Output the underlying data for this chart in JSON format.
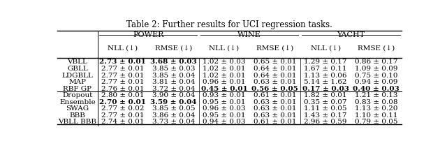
{
  "title": "Table 2: Further results for UCI regression tasks.",
  "col_groups": [
    "Power",
    "Wine",
    "Yacht"
  ],
  "col_headers": [
    "NLL (↓)",
    "RMSE (↓)",
    "NLL (↓)",
    "RMSE (↓)",
    "NLL (↓)",
    "RMSE (↓)"
  ],
  "row_labels": [
    "VBLL",
    "GBLL",
    "LDGBLL",
    "MAP",
    "RBF GP",
    "Dropout",
    "Ensemble",
    "SWAG",
    "BBB",
    "VBLL BBB"
  ],
  "data": [
    [
      "2.73 ± 0.01",
      "3.68 ± 0.03",
      "1.02 ± 0.03",
      "0.65 ± 0.01",
      "1.29 ± 0.17",
      "0.86 ± 0.17"
    ],
    [
      "2.77 ± 0.01",
      "3.85 ± 0.03",
      "1.02 ± 0.01",
      "0.64 ± 0.01",
      "1.67 ± 0.11",
      "1.09 ± 0.09"
    ],
    [
      "2.77 ± 0.01",
      "3.85 ± 0.04",
      "1.02 ± 0.01",
      "0.64 ± 0.01",
      "1.13 ± 0.06",
      "0.75 ± 0.10"
    ],
    [
      "2.77 ± 0.01",
      "3.81 ± 0.04",
      "0.96 ± 0.01",
      "0.63 ± 0.01",
      "5.14 ± 1.62",
      "0.94 ± 0.09"
    ],
    [
      "2.76 ± 0.01",
      "3.72 ± 0.04",
      "0.45 ± 0.01",
      "0.56 ± 0.05",
      "0.17 ± 0.03",
      "0.40 ± 0.03"
    ],
    [
      "2.80 ± 0.01",
      "3.90 ± 0.04",
      "0.93 ± 0.01",
      "0.61 ± 0.01",
      "1.82 ± 0.01",
      "1.21 ± 0.13"
    ],
    [
      "2.70 ± 0.01",
      "3.59 ± 0.04",
      "0.95 ± 0.01",
      "0.63 ± 0.01",
      "0.35 ± 0.07",
      "0.83 ± 0.08"
    ],
    [
      "2.77 ± 0.02",
      "3.85 ± 0.05",
      "0.96 ± 0.03",
      "0.63 ± 0.01",
      "1.11 ± 0.05",
      "1.13 ± 0.20"
    ],
    [
      "2.77 ± 0.01",
      "3.86 ± 0.04",
      "0.95 ± 0.01",
      "0.63 ± 0.01",
      "1.43 ± 0.17",
      "1.10 ± 0.11"
    ],
    [
      "2.74 ± 0.01",
      "3.73 ± 0.04",
      "0.94 ± 0.03",
      "0.61 ± 0.01",
      "2.96 ± 0.59",
      "0.79 ± 0.05"
    ]
  ],
  "bold": [
    [
      true,
      true,
      false,
      false,
      false,
      false
    ],
    [
      false,
      false,
      false,
      false,
      false,
      false
    ],
    [
      false,
      false,
      false,
      false,
      false,
      false
    ],
    [
      false,
      false,
      false,
      false,
      false,
      false
    ],
    [
      false,
      false,
      true,
      true,
      true,
      true
    ],
    [
      false,
      false,
      false,
      false,
      false,
      false
    ],
    [
      true,
      true,
      false,
      false,
      false,
      false
    ],
    [
      false,
      false,
      false,
      false,
      false,
      false
    ],
    [
      false,
      false,
      false,
      false,
      false,
      false
    ],
    [
      false,
      false,
      false,
      false,
      false,
      false
    ]
  ],
  "separator_after_row": 5,
  "background_color": "#ffffff"
}
